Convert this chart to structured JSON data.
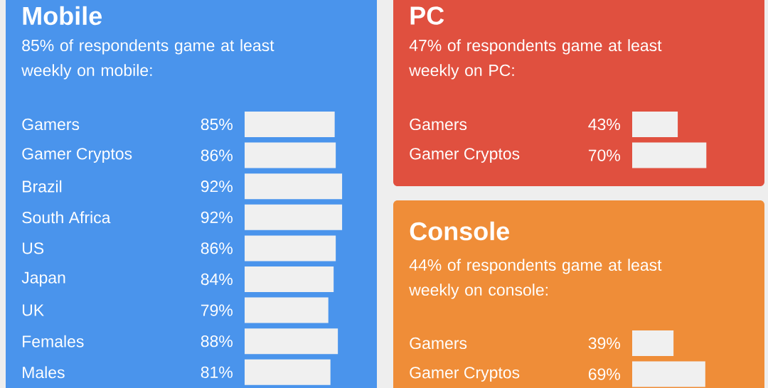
{
  "chart_data": [
    {
      "type": "bar",
      "orientation": "horizontal",
      "title": "Mobile",
      "subtitle": "85% of respondents game at least weekly on mobile:",
      "categories": [
        "Gamers",
        "Gamer Cryptos",
        "Brazil",
        "South Africa",
        "US",
        "Japan",
        "UK",
        "Females",
        "Males"
      ],
      "values": [
        85,
        86,
        92,
        92,
        86,
        84,
        79,
        88,
        81
      ],
      "value_labels": [
        "85%",
        "86%",
        "92%",
        "92%",
        "86%",
        "84%",
        "79%",
        "88%",
        "81%"
      ],
      "color": "#f0f0f0"
    },
    {
      "type": "bar",
      "orientation": "horizontal",
      "title": "PC",
      "subtitle": "47% of respondents game at least weekly on PC:",
      "categories": [
        "Gamers",
        "Gamer Cryptos"
      ],
      "values": [
        43,
        70
      ],
      "value_labels": [
        "43%",
        "70%"
      ],
      "color": "#f0f0f0"
    },
    {
      "type": "bar",
      "orientation": "horizontal",
      "title": "Console",
      "subtitle": "44% of respondents game at least weekly on console:",
      "categories": [
        "Gamers",
        "Gamer Cryptos"
      ],
      "values": [
        39,
        69
      ],
      "value_labels": [
        "39%",
        "69%"
      ],
      "color": "#f0f0f0"
    }
  ]
}
